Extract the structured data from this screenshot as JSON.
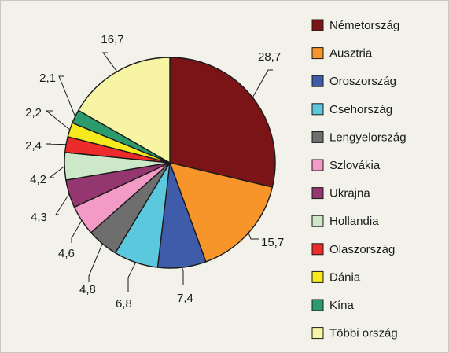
{
  "chart_data": {
    "type": "pie",
    "title": "",
    "categories": [
      "Németország",
      "Ausztria",
      "Oroszország",
      "Csehország",
      "Lengyelország",
      "Szlovákia",
      "Ukrajna",
      "Hollandia",
      "Olaszország",
      "Dánia",
      "Kína",
      "Többi ország"
    ],
    "value_labels": [
      "28,7",
      "15,7",
      "7,4",
      "6,8",
      "4,8",
      "4,6",
      "4,3",
      "4,2",
      "2,4",
      "2,2",
      "2,1",
      "16,7"
    ],
    "values": [
      28.7,
      15.7,
      7.4,
      6.8,
      4.8,
      4.6,
      4.3,
      4.2,
      2.4,
      2.2,
      2.1,
      16.7
    ],
    "colors": [
      "#7b1416",
      "#f7952b",
      "#3f5cab",
      "#5bc8de",
      "#6e6e6e",
      "#f49ac6",
      "#94366f",
      "#cde8c8",
      "#ee2b2b",
      "#f5ea1e",
      "#2b9a6c",
      "#f7f5a4"
    ],
    "legend_position": "right"
  }
}
